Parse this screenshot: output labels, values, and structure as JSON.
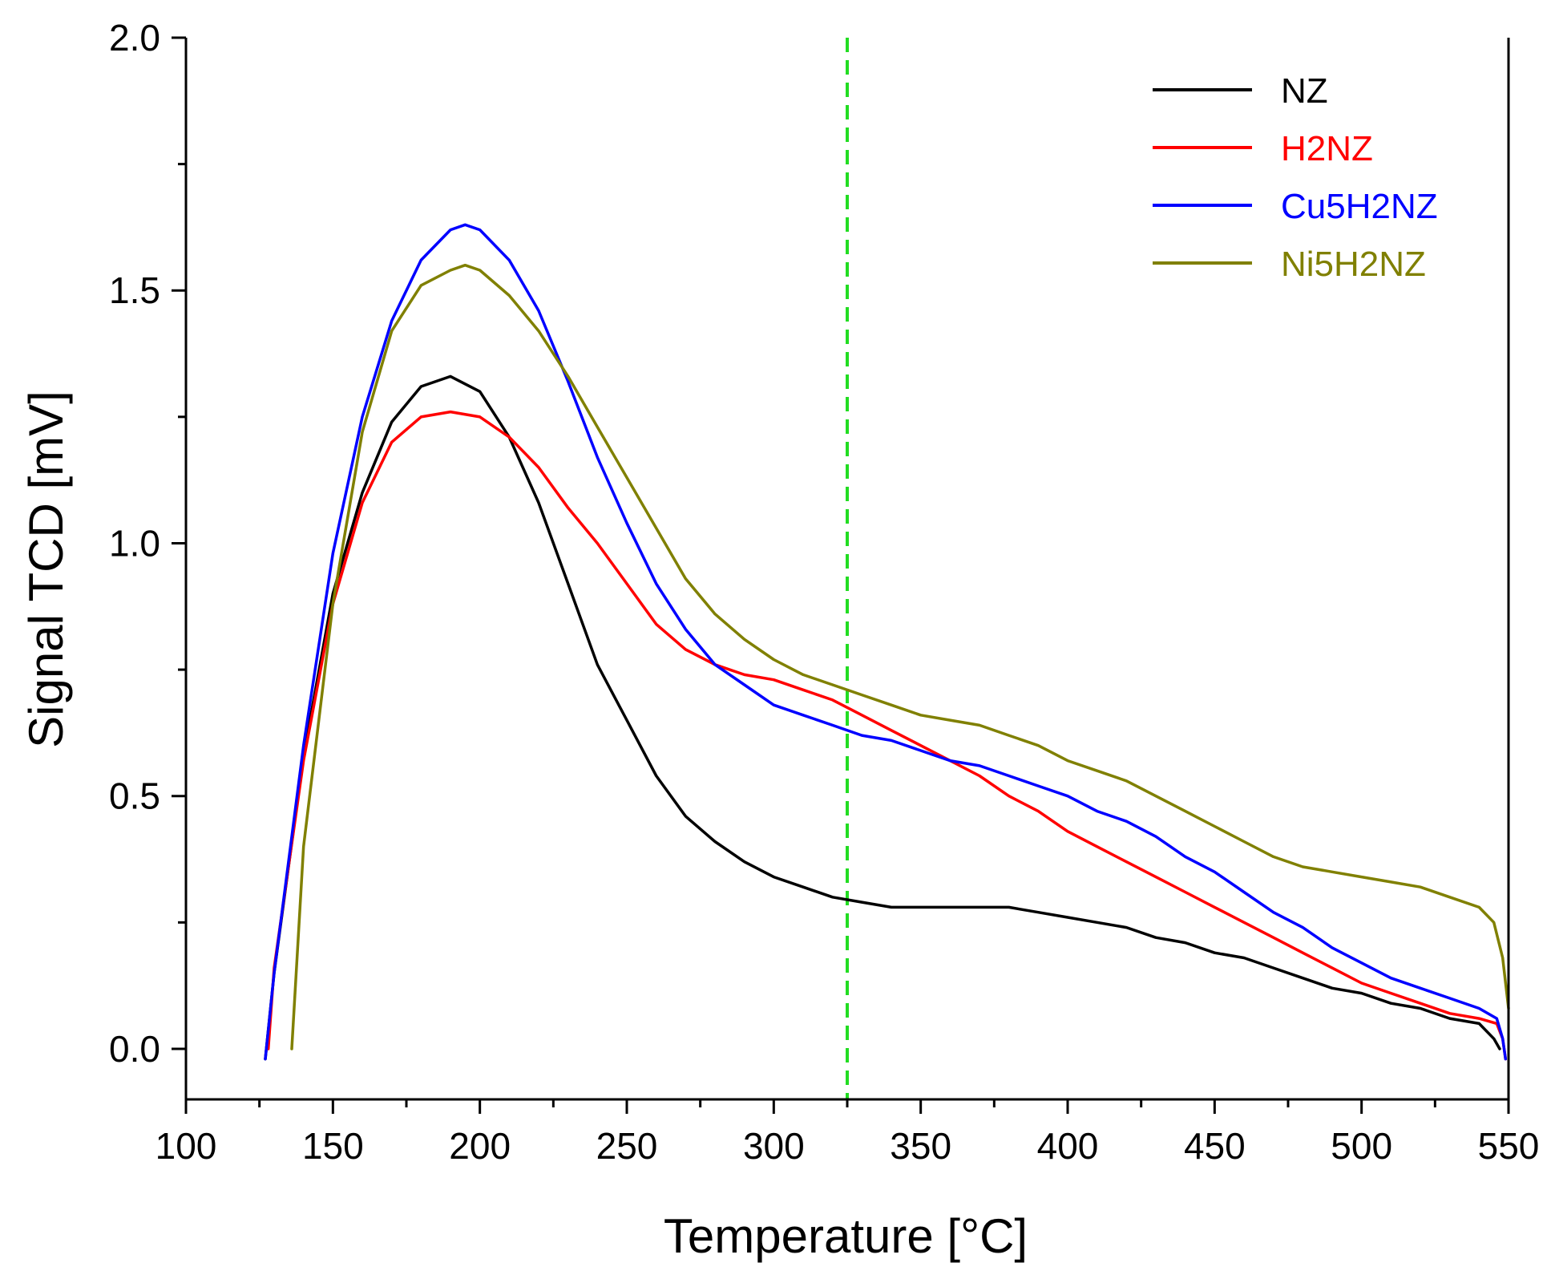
{
  "chart_data": {
    "type": "line",
    "xlabel": "Temperature [°C]",
    "ylabel": "Signal TCD [mV]",
    "xlim": [
      100,
      550
    ],
    "ylim": [
      -0.1,
      2.0
    ],
    "x_ticks": [
      100,
      150,
      200,
      250,
      300,
      350,
      400,
      450,
      500,
      550
    ],
    "x_tick_labels": [
      "100",
      "150",
      "200",
      "250",
      "300",
      "350",
      "400",
      "450",
      "500",
      "550"
    ],
    "y_ticks": [
      0.0,
      0.5,
      1.0,
      1.5,
      2.0
    ],
    "y_tick_labels": [
      "0.0",
      "0.5",
      "1.0",
      "1.5",
      "2.0"
    ],
    "grid": false,
    "legend_position": "top-right",
    "reference_line": {
      "axis": "x",
      "value": 325,
      "color": "#22dd22",
      "style": "dashed"
    },
    "series": [
      {
        "name": "NZ",
        "color": "#000000",
        "x": [
          127,
          130,
          140,
          150,
          160,
          170,
          180,
          190,
          200,
          210,
          220,
          230,
          240,
          250,
          260,
          270,
          280,
          290,
          300,
          310,
          320,
          330,
          340,
          350,
          360,
          370,
          380,
          390,
          400,
          410,
          420,
          430,
          440,
          450,
          460,
          470,
          480,
          490,
          500,
          510,
          520,
          530,
          540,
          545,
          547
        ],
        "y": [
          -0.02,
          0.15,
          0.58,
          0.9,
          1.1,
          1.24,
          1.31,
          1.33,
          1.3,
          1.21,
          1.08,
          0.92,
          0.76,
          0.65,
          0.54,
          0.46,
          0.41,
          0.37,
          0.34,
          0.32,
          0.3,
          0.29,
          0.28,
          0.28,
          0.28,
          0.28,
          0.28,
          0.27,
          0.26,
          0.25,
          0.24,
          0.22,
          0.21,
          0.19,
          0.18,
          0.16,
          0.14,
          0.12,
          0.11,
          0.09,
          0.08,
          0.06,
          0.05,
          0.02,
          0.0
        ]
      },
      {
        "name": "H2NZ",
        "color": "#ff0000",
        "x": [
          128,
          130,
          140,
          150,
          160,
          170,
          180,
          190,
          200,
          210,
          220,
          230,
          240,
          250,
          260,
          270,
          280,
          290,
          300,
          310,
          320,
          330,
          340,
          350,
          360,
          370,
          380,
          390,
          400,
          410,
          420,
          430,
          440,
          450,
          460,
          470,
          480,
          490,
          500,
          510,
          520,
          530,
          540,
          546,
          548,
          549
        ],
        "y": [
          0.0,
          0.16,
          0.57,
          0.88,
          1.08,
          1.2,
          1.25,
          1.26,
          1.25,
          1.21,
          1.15,
          1.07,
          1.0,
          0.92,
          0.84,
          0.79,
          0.76,
          0.74,
          0.73,
          0.71,
          0.69,
          0.66,
          0.63,
          0.6,
          0.57,
          0.54,
          0.5,
          0.47,
          0.43,
          0.4,
          0.37,
          0.34,
          0.31,
          0.28,
          0.25,
          0.22,
          0.19,
          0.16,
          0.13,
          0.11,
          0.09,
          0.07,
          0.06,
          0.05,
          0.02,
          -0.02
        ]
      },
      {
        "name": "Cu5H2NZ",
        "color": "#0000ff",
        "x": [
          127,
          130,
          140,
          150,
          160,
          170,
          180,
          190,
          195,
          200,
          210,
          220,
          230,
          240,
          250,
          260,
          270,
          280,
          290,
          300,
          310,
          320,
          330,
          340,
          350,
          360,
          370,
          380,
          390,
          400,
          410,
          420,
          430,
          440,
          450,
          460,
          470,
          480,
          490,
          500,
          510,
          520,
          530,
          540,
          546,
          548,
          549
        ],
        "y": [
          -0.02,
          0.15,
          0.6,
          0.98,
          1.25,
          1.44,
          1.56,
          1.62,
          1.63,
          1.62,
          1.56,
          1.46,
          1.32,
          1.17,
          1.04,
          0.92,
          0.83,
          0.76,
          0.72,
          0.68,
          0.66,
          0.64,
          0.62,
          0.61,
          0.59,
          0.57,
          0.56,
          0.54,
          0.52,
          0.5,
          0.47,
          0.45,
          0.42,
          0.38,
          0.35,
          0.31,
          0.27,
          0.24,
          0.2,
          0.17,
          0.14,
          0.12,
          0.1,
          0.08,
          0.06,
          0.02,
          -0.02
        ]
      },
      {
        "name": "Ni5H2NZ",
        "color": "#808000",
        "x": [
          136,
          140,
          150,
          160,
          170,
          180,
          190,
          195,
          200,
          210,
          220,
          230,
          240,
          250,
          260,
          270,
          280,
          290,
          300,
          310,
          320,
          330,
          340,
          350,
          360,
          370,
          380,
          390,
          400,
          410,
          420,
          430,
          440,
          450,
          460,
          470,
          480,
          490,
          500,
          510,
          520,
          530,
          540,
          545,
          548,
          550
        ],
        "y": [
          0.0,
          0.4,
          0.88,
          1.22,
          1.42,
          1.51,
          1.54,
          1.55,
          1.54,
          1.49,
          1.42,
          1.33,
          1.23,
          1.13,
          1.03,
          0.93,
          0.86,
          0.81,
          0.77,
          0.74,
          0.72,
          0.7,
          0.68,
          0.66,
          0.65,
          0.64,
          0.62,
          0.6,
          0.57,
          0.55,
          0.53,
          0.5,
          0.47,
          0.44,
          0.41,
          0.38,
          0.36,
          0.35,
          0.34,
          0.33,
          0.32,
          0.3,
          0.28,
          0.25,
          0.18,
          0.08
        ]
      }
    ]
  }
}
